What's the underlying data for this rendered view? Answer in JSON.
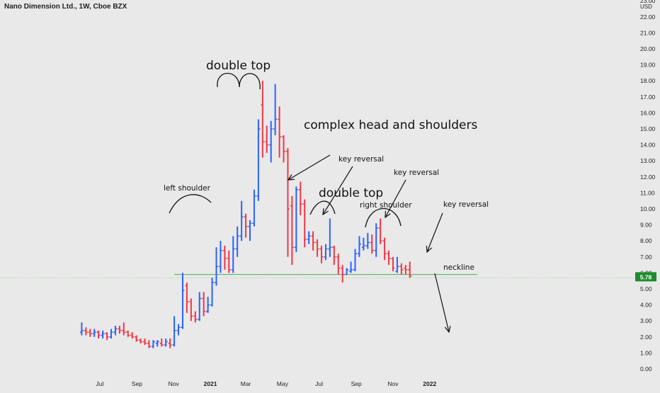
{
  "header": {
    "title": "Nano Dimension Ltd., 1W, Cboe BZX"
  },
  "colors": {
    "up": "#2962ff",
    "down": "#f23645",
    "neckline": "#4caf50",
    "price_badge": "#1e8c2b",
    "background": "#e9e9e9"
  },
  "chart_data": {
    "type": "ohlc",
    "title": "Nano Dimension Ltd., 1W, Cboe BZX",
    "currency": "USD",
    "grid": false,
    "ylim": [
      0,
      23
    ],
    "y_ticks": [
      "0.00",
      "1.00",
      "2.00",
      "3.00",
      "4.00",
      "5.00",
      "6.00",
      "7.00",
      "8.00",
      "9.00",
      "10.00",
      "11.00",
      "12.00",
      "13.00",
      "14.00",
      "15.00",
      "16.00",
      "17.00",
      "18.00",
      "19.00",
      "20.00",
      "21.00",
      "22.00",
      "23.00"
    ],
    "x_tick_labels": [
      "Jul",
      "Sep",
      "Nov",
      "2021",
      "Mar",
      "May",
      "Jul",
      "Sep",
      "Nov",
      "2022"
    ],
    "last_price": "5.78",
    "neckline": 5.9,
    "bars": [
      {
        "date": "2020-06-01",
        "open": 2.3,
        "high": 2.9,
        "low": 2.1,
        "close": 2.4
      },
      {
        "date": "2020-06-08",
        "open": 2.4,
        "high": 2.6,
        "low": 2.1,
        "close": 2.3
      },
      {
        "date": "2020-06-15",
        "open": 2.3,
        "high": 2.5,
        "low": 2.0,
        "close": 2.2
      },
      {
        "date": "2020-06-22",
        "open": 2.2,
        "high": 2.5,
        "low": 2.0,
        "close": 2.3
      },
      {
        "date": "2020-06-29",
        "open": 2.3,
        "high": 2.4,
        "low": 1.9,
        "close": 2.1
      },
      {
        "date": "2020-07-06",
        "open": 2.1,
        "high": 2.4,
        "low": 1.9,
        "close": 2.2
      },
      {
        "date": "2020-07-13",
        "open": 2.2,
        "high": 2.3,
        "low": 1.8,
        "close": 2.0
      },
      {
        "date": "2020-07-20",
        "open": 2.0,
        "high": 2.5,
        "low": 1.9,
        "close": 2.3
      },
      {
        "date": "2020-07-27",
        "open": 2.3,
        "high": 2.7,
        "low": 2.1,
        "close": 2.5
      },
      {
        "date": "2020-08-03",
        "open": 2.5,
        "high": 2.7,
        "low": 2.2,
        "close": 2.4
      },
      {
        "date": "2020-08-10",
        "open": 2.4,
        "high": 2.9,
        "low": 2.1,
        "close": 2.3
      },
      {
        "date": "2020-08-17",
        "open": 2.3,
        "high": 2.4,
        "low": 2.0,
        "close": 2.1
      },
      {
        "date": "2020-08-24",
        "open": 2.1,
        "high": 2.3,
        "low": 1.9,
        "close": 2.0
      },
      {
        "date": "2020-08-31",
        "open": 2.0,
        "high": 2.1,
        "low": 1.7,
        "close": 1.8
      },
      {
        "date": "2020-09-07",
        "open": 1.8,
        "high": 1.9,
        "low": 1.6,
        "close": 1.7
      },
      {
        "date": "2020-09-14",
        "open": 1.7,
        "high": 1.9,
        "low": 1.5,
        "close": 1.6
      },
      {
        "date": "2020-09-21",
        "open": 1.6,
        "high": 1.8,
        "low": 1.3,
        "close": 1.4
      },
      {
        "date": "2020-09-28",
        "open": 1.4,
        "high": 1.8,
        "low": 1.3,
        "close": 1.7
      },
      {
        "date": "2020-10-05",
        "open": 1.6,
        "high": 1.8,
        "low": 1.4,
        "close": 1.7
      },
      {
        "date": "2020-10-12",
        "open": 1.6,
        "high": 1.9,
        "low": 1.4,
        "close": 1.5
      },
      {
        "date": "2020-10-19",
        "open": 1.5,
        "high": 1.9,
        "low": 1.4,
        "close": 1.7
      },
      {
        "date": "2020-10-26",
        "open": 1.6,
        "high": 1.9,
        "low": 1.3,
        "close": 1.5
      },
      {
        "date": "2020-11-02",
        "open": 1.5,
        "high": 3.3,
        "low": 1.4,
        "close": 2.4
      },
      {
        "date": "2020-11-09",
        "open": 2.4,
        "high": 2.8,
        "low": 2.1,
        "close": 2.6
      },
      {
        "date": "2020-11-16",
        "open": 2.6,
        "high": 6.0,
        "low": 2.5,
        "close": 4.9
      },
      {
        "date": "2020-11-23",
        "open": 5.2,
        "high": 5.4,
        "low": 3.5,
        "close": 4.2
      },
      {
        "date": "2020-11-30",
        "open": 4.2,
        "high": 4.4,
        "low": 3.0,
        "close": 3.3
      },
      {
        "date": "2020-12-07",
        "open": 3.3,
        "high": 3.6,
        "low": 2.9,
        "close": 3.1
      },
      {
        "date": "2020-12-14",
        "open": 3.1,
        "high": 4.8,
        "low": 3.0,
        "close": 4.4
      },
      {
        "date": "2020-12-21",
        "open": 4.4,
        "high": 4.8,
        "low": 3.3,
        "close": 3.6
      },
      {
        "date": "2020-12-28",
        "open": 3.6,
        "high": 4.5,
        "low": 3.5,
        "close": 4.0
      },
      {
        "date": "2021-01-04",
        "open": 4.0,
        "high": 5.7,
        "low": 3.9,
        "close": 5.4
      },
      {
        "date": "2021-01-11",
        "open": 5.4,
        "high": 7.6,
        "low": 5.2,
        "close": 6.4
      },
      {
        "date": "2021-01-18",
        "open": 6.4,
        "high": 8.0,
        "low": 6.0,
        "close": 7.4
      },
      {
        "date": "2021-01-25",
        "open": 7.4,
        "high": 7.7,
        "low": 6.2,
        "close": 6.9
      },
      {
        "date": "2021-02-01",
        "open": 6.9,
        "high": 7.4,
        "low": 6.0,
        "close": 6.2
      },
      {
        "date": "2021-02-08",
        "open": 6.2,
        "high": 8.3,
        "low": 6.0,
        "close": 7.5
      },
      {
        "date": "2021-02-15",
        "open": 7.5,
        "high": 8.9,
        "low": 7.0,
        "close": 8.3
      },
      {
        "date": "2021-02-22",
        "open": 8.3,
        "high": 10.5,
        "low": 8.0,
        "close": 9.5
      },
      {
        "date": "2021-03-01",
        "open": 9.5,
        "high": 9.7,
        "low": 8.2,
        "close": 8.9
      },
      {
        "date": "2021-03-08",
        "open": 8.9,
        "high": 9.3,
        "low": 8.0,
        "close": 9.1
      },
      {
        "date": "2021-03-15",
        "open": 9.1,
        "high": 11.2,
        "low": 8.9,
        "close": 10.8
      },
      {
        "date": "2021-03-22",
        "open": 10.8,
        "high": 15.6,
        "low": 10.5,
        "close": 15.0
      },
      {
        "date": "2021-03-29",
        "open": 16.5,
        "high": 18.0,
        "low": 13.2,
        "close": 14.2
      },
      {
        "date": "2021-04-05",
        "open": 14.2,
        "high": 15.2,
        "low": 13.5,
        "close": 14.0
      },
      {
        "date": "2021-04-12",
        "open": 14.0,
        "high": 15.5,
        "low": 12.9,
        "close": 15.0
      },
      {
        "date": "2021-04-19",
        "open": 15.0,
        "high": 17.8,
        "low": 14.6,
        "close": 15.6
      },
      {
        "date": "2021-04-26",
        "open": 15.6,
        "high": 16.4,
        "low": 13.2,
        "close": 14.5
      },
      {
        "date": "2021-05-03",
        "open": 14.5,
        "high": 14.6,
        "low": 12.9,
        "close": 13.6
      },
      {
        "date": "2021-05-10",
        "open": 13.6,
        "high": 13.8,
        "low": 7.0,
        "close": 10.0
      },
      {
        "date": "2021-05-17",
        "open": 10.2,
        "high": 10.8,
        "low": 6.5,
        "close": 7.6
      },
      {
        "date": "2021-05-24",
        "open": 7.6,
        "high": 11.4,
        "low": 7.3,
        "close": 11.2
      },
      {
        "date": "2021-05-31",
        "open": 11.2,
        "high": 11.7,
        "low": 9.6,
        "close": 10.3
      },
      {
        "date": "2021-06-07",
        "open": 10.3,
        "high": 10.6,
        "low": 7.6,
        "close": 8.1
      },
      {
        "date": "2021-06-14",
        "open": 8.1,
        "high": 8.6,
        "low": 7.8,
        "close": 8.3
      },
      {
        "date": "2021-06-21",
        "open": 8.3,
        "high": 8.6,
        "low": 7.4,
        "close": 7.9
      },
      {
        "date": "2021-06-28",
        "open": 7.9,
        "high": 8.1,
        "low": 7.0,
        "close": 7.5
      },
      {
        "date": "2021-07-05",
        "open": 7.5,
        "high": 7.7,
        "low": 6.6,
        "close": 7.0
      },
      {
        "date": "2021-07-12",
        "open": 7.0,
        "high": 7.8,
        "low": 6.8,
        "close": 7.5
      },
      {
        "date": "2021-07-19",
        "open": 7.5,
        "high": 9.4,
        "low": 7.0,
        "close": 7.6
      },
      {
        "date": "2021-07-26",
        "open": 7.6,
        "high": 7.7,
        "low": 6.5,
        "close": 7.0
      },
      {
        "date": "2021-08-02",
        "open": 7.0,
        "high": 7.2,
        "low": 5.9,
        "close": 6.3
      },
      {
        "date": "2021-08-09",
        "open": 6.3,
        "high": 6.5,
        "low": 5.4,
        "close": 5.9
      },
      {
        "date": "2021-08-16",
        "open": 5.9,
        "high": 6.3,
        "low": 5.9,
        "close": 6.2
      },
      {
        "date": "2021-08-23",
        "open": 6.1,
        "high": 6.7,
        "low": 6.0,
        "close": 6.2
      },
      {
        "date": "2021-08-30",
        "open": 6.2,
        "high": 7.5,
        "low": 6.1,
        "close": 7.2
      },
      {
        "date": "2021-09-06",
        "open": 7.2,
        "high": 8.3,
        "low": 7.0,
        "close": 7.8
      },
      {
        "date": "2021-09-13",
        "open": 7.6,
        "high": 8.2,
        "low": 7.4,
        "close": 7.7
      },
      {
        "date": "2021-09-20",
        "open": 7.7,
        "high": 8.5,
        "low": 7.5,
        "close": 7.9
      },
      {
        "date": "2021-09-27",
        "open": 7.9,
        "high": 8.4,
        "low": 7.2,
        "close": 7.4
      },
      {
        "date": "2021-10-04",
        "open": 7.4,
        "high": 9.1,
        "low": 7.0,
        "close": 8.8
      },
      {
        "date": "2021-10-11",
        "open": 8.8,
        "high": 9.4,
        "low": 7.8,
        "close": 8.0
      },
      {
        "date": "2021-10-18",
        "open": 8.0,
        "high": 8.2,
        "low": 6.8,
        "close": 7.2
      },
      {
        "date": "2021-10-25",
        "open": 7.2,
        "high": 7.4,
        "low": 6.5,
        "close": 6.9
      },
      {
        "date": "2021-11-01",
        "open": 6.9,
        "high": 7.0,
        "low": 6.1,
        "close": 6.3
      },
      {
        "date": "2021-11-08",
        "open": 6.1,
        "high": 7.0,
        "low": 6.0,
        "close": 6.4
      },
      {
        "date": "2021-11-15",
        "open": 6.4,
        "high": 6.6,
        "low": 5.9,
        "close": 6.2
      },
      {
        "date": "2021-11-22",
        "open": 6.3,
        "high": 6.5,
        "low": 5.9,
        "close": 6.2
      },
      {
        "date": "2021-11-29",
        "open": 6.2,
        "high": 6.7,
        "low": 5.7,
        "close": 5.8
      }
    ],
    "annotations": [
      {
        "text": "double top"
      },
      {
        "text": "complex head and shoulders"
      },
      {
        "text": "left shoulder"
      },
      {
        "text": "key reversal"
      },
      {
        "text": "double top"
      },
      {
        "text": "key reversal"
      },
      {
        "text": "right shoulder"
      },
      {
        "text": "key reversal"
      },
      {
        "text": "neckline"
      }
    ]
  }
}
